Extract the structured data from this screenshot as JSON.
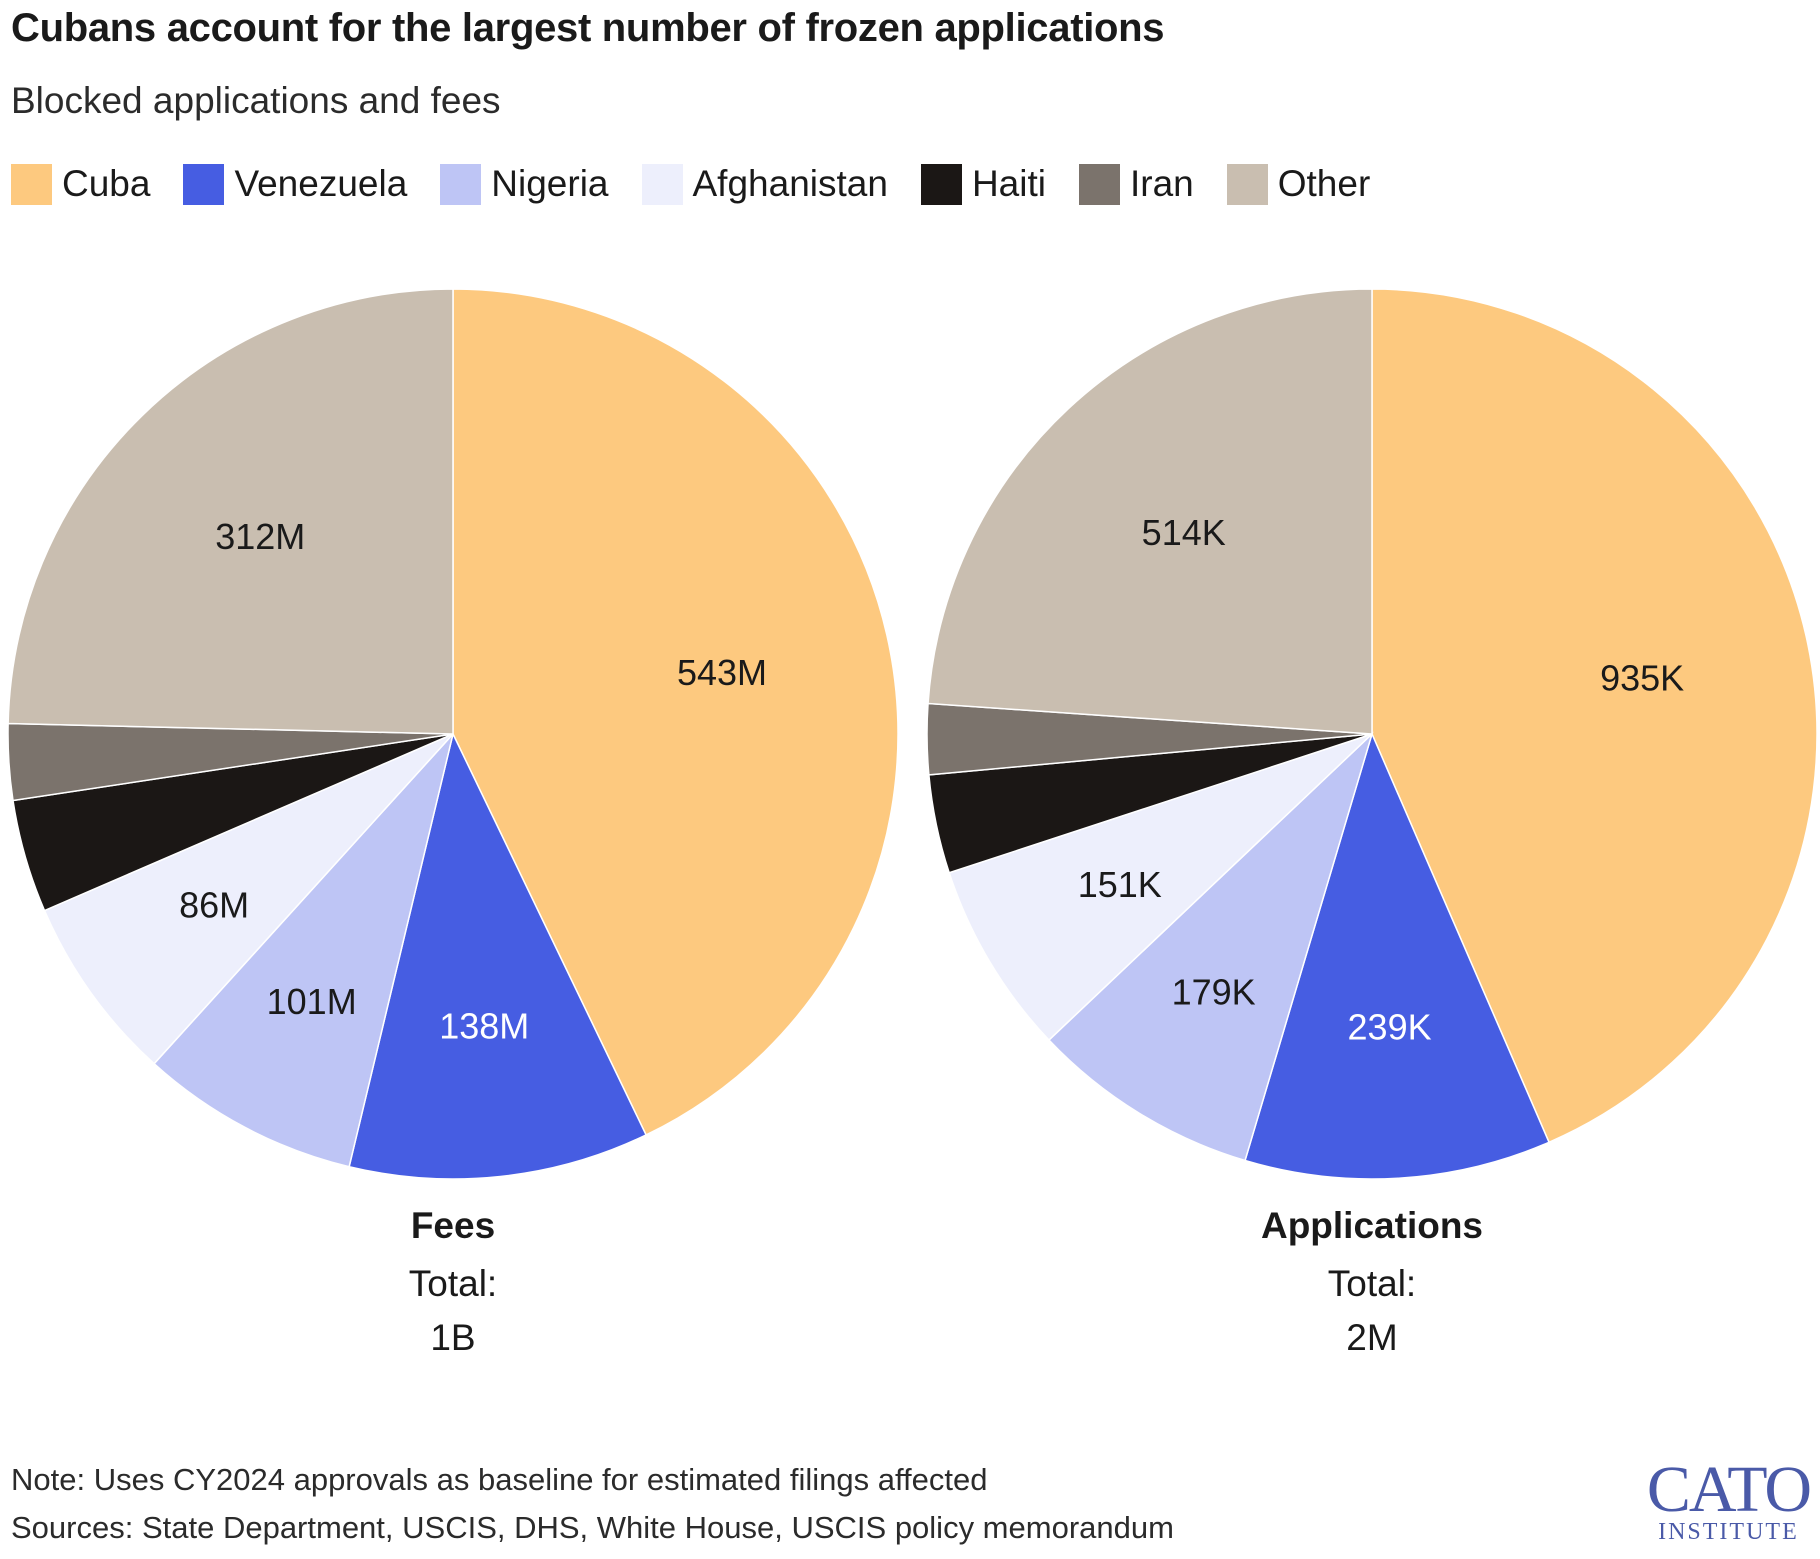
{
  "header": {
    "title": "Cubans account for the largest number of frozen applications",
    "subtitle": "Blocked applications and fees"
  },
  "legend": [
    {
      "label": "Cuba",
      "color": "#fdc97f"
    },
    {
      "label": "Venezuela",
      "color": "#465de2"
    },
    {
      "label": "Nigeria",
      "color": "#bec5f5"
    },
    {
      "label": "Afghanistan",
      "color": "#edeffc"
    },
    {
      "label": "Haiti",
      "color": "#1b1715"
    },
    {
      "label": "Iran",
      "color": "#7b736c"
    },
    {
      "label": "Other",
      "color": "#c9beb0"
    }
  ],
  "chart_data": [
    {
      "type": "pie",
      "title": "Fees",
      "total_label": "Total:",
      "total_value": "1B",
      "categories": [
        "Cuba",
        "Venezuela",
        "Nigeria",
        "Afghanistan",
        "Haiti",
        "Iran",
        "Other"
      ],
      "values": [
        543,
        138,
        101,
        86,
        52,
        35,
        312
      ],
      "units": "M",
      "labels": [
        "543M",
        "138M",
        "101M",
        "86M",
        "",
        "",
        "312M"
      ],
      "label_colors": [
        "#1a1a1a",
        "#ffffff",
        "#1a1a1a",
        "#1a1a1a",
        "",
        "",
        "#1a1a1a"
      ]
    },
    {
      "type": "pie",
      "title": "Applications",
      "total_label": "Total:",
      "total_value": "2M",
      "categories": [
        "Cuba",
        "Venezuela",
        "Nigeria",
        "Afghanistan",
        "Haiti",
        "Iran",
        "Other"
      ],
      "values": [
        935,
        239,
        179,
        151,
        77,
        55,
        514
      ],
      "units": "K",
      "labels": [
        "935K",
        "239K",
        "179K",
        "151K",
        "",
        "",
        "514K"
      ],
      "label_colors": [
        "#1a1a1a",
        "#ffffff",
        "#1a1a1a",
        "#1a1a1a",
        "",
        "",
        "#1a1a1a"
      ]
    }
  ],
  "footer": {
    "note": "Note: Uses CY2024 approvals as baseline for estimated filings affected",
    "sources": "Sources: State Department, USCIS, DHS, White House, USCIS policy memorandum"
  },
  "logo": {
    "main": "CATO",
    "sub": "INSTITUTE"
  }
}
